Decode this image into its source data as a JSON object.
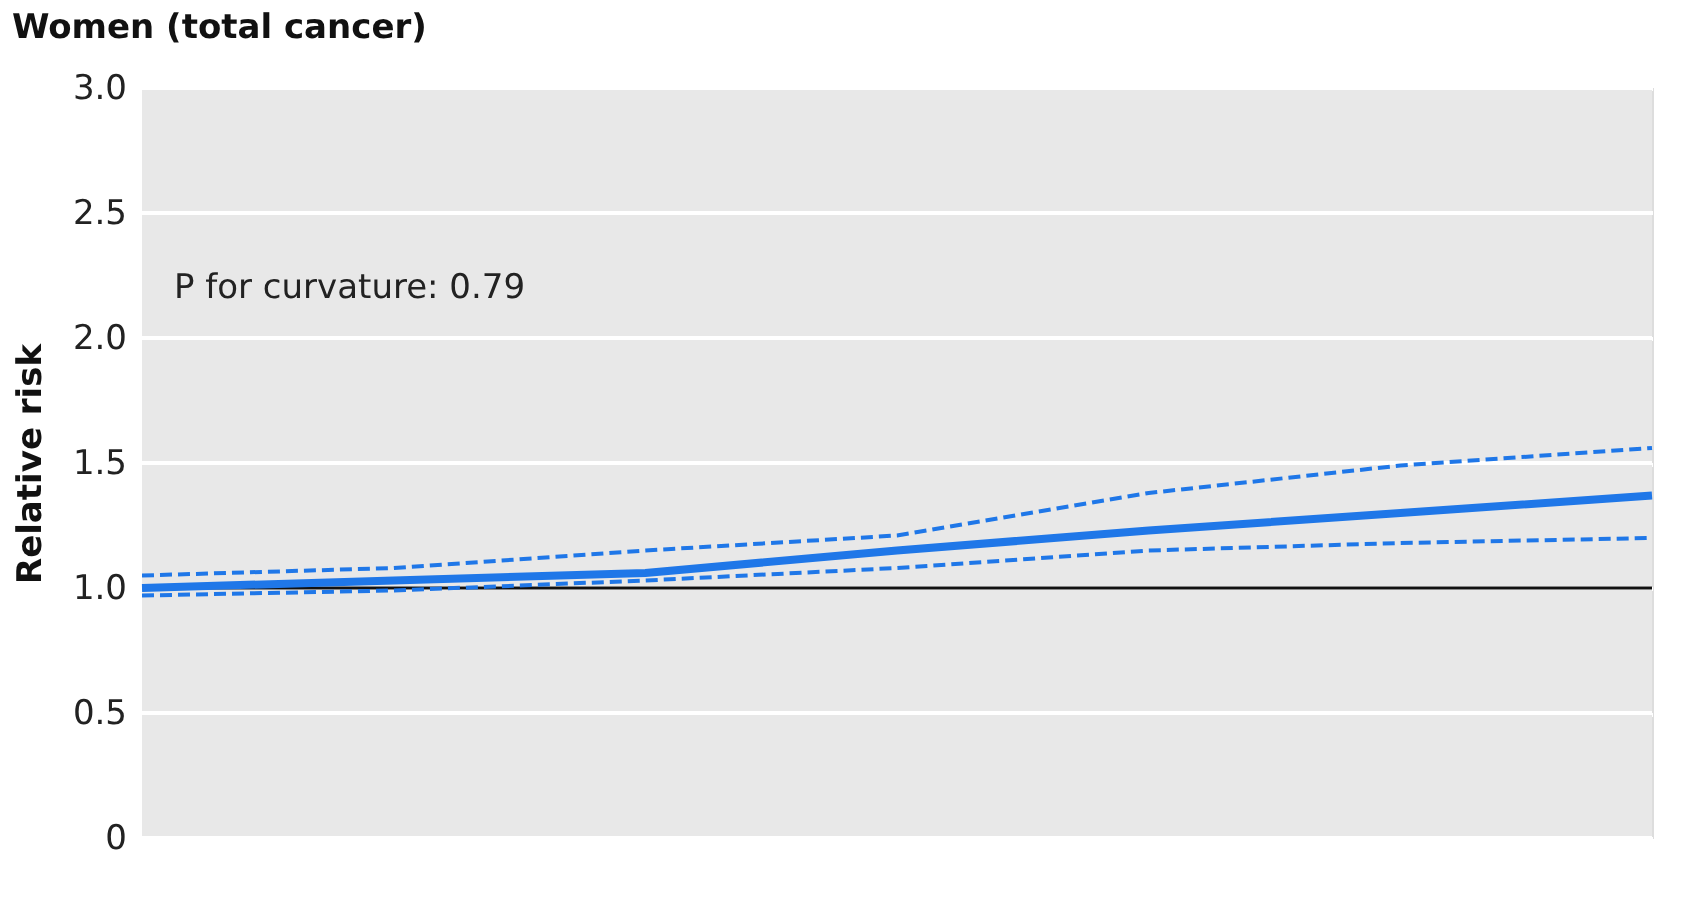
{
  "chart_data": {
    "type": "line",
    "title": "Women (total cancer)",
    "ylabel": "Relative risk",
    "categories": [
      null,
      null,
      null,
      null,
      null,
      null,
      null
    ],
    "series": [
      {
        "color": "#1f77e8",
        "line_style": "solid",
        "values": [
          1.0,
          1.03,
          1.06,
          1.15,
          1.23,
          1.3,
          1.37
        ]
      },
      {
        "color": "#1f77e8",
        "line_style": "dashed",
        "values": [
          1.05,
          1.08,
          1.15,
          1.21,
          1.38,
          1.49,
          1.56
        ]
      },
      {
        "color": "#1f77e8",
        "line_style": "dashed",
        "values": [
          0.97,
          0.99,
          1.03,
          1.08,
          1.15,
          1.18,
          1.2
        ]
      }
    ],
    "ylim": [
      0,
      3.0
    ],
    "yticks": [
      0,
      0.5,
      {
        "value": 1,
        "label": "1.0"
      },
      1.5,
      {
        "value": 2,
        "label": "2.0"
      },
      2.5,
      {
        "value": 3,
        "label": "3.0"
      }
    ],
    "grid": "y",
    "ref_lines": [
      {
        "axis": "y",
        "value": 1,
        "color": "#111111",
        "line_style": "solid"
      }
    ],
    "annotations": [
      "P for curvature: 0.79"
    ]
  }
}
